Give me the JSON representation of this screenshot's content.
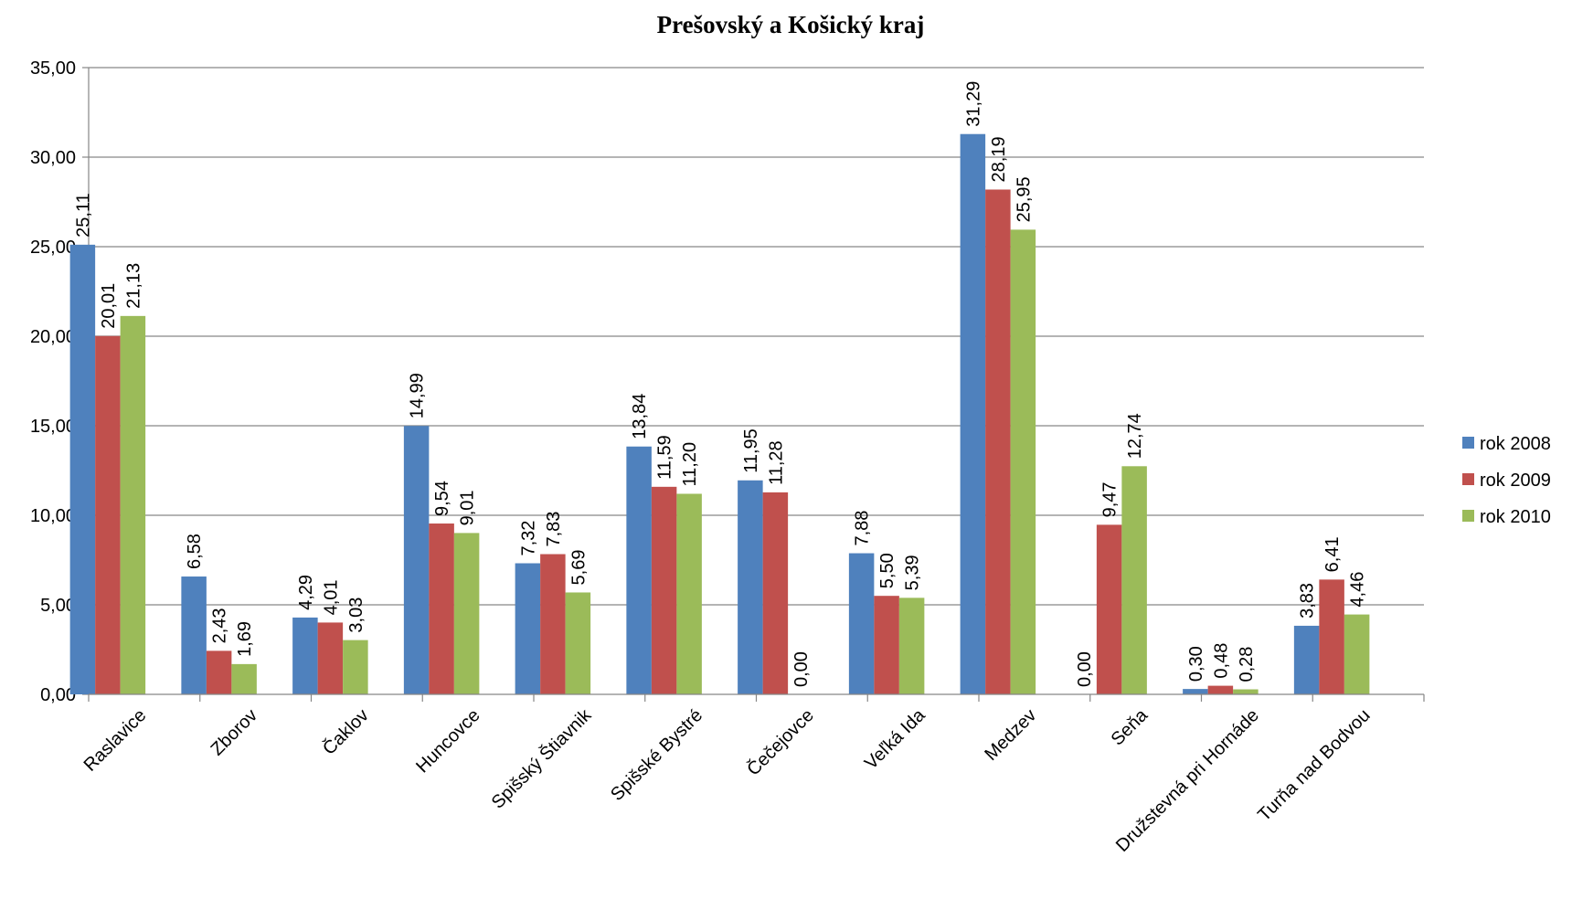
{
  "chart_data": {
    "type": "bar",
    "title": "Prešovský a Košický kraj",
    "xlabel": "",
    "ylabel": "",
    "ylim": [
      0,
      35
    ],
    "yticks": [
      "0,00",
      "5,00",
      "10,00",
      "15,00",
      "20,00",
      "25,00",
      "30,00",
      "35,00"
    ],
    "grid": true,
    "legend_position": "right",
    "categories": [
      "Raslavice",
      "Zborov",
      "Čaklov",
      "Huncovce",
      "Spišský Štiavnik",
      "Spišské Bystré",
      "Čečejovce",
      "Veľká Ida",
      "Medzev",
      "Seňa",
      "Družstevná pri Hornáde",
      "Turňa nad Bodvou"
    ],
    "series": [
      {
        "name": "rok 2008",
        "color": "#4F81BD",
        "values": [
          25.11,
          6.58,
          4.29,
          14.99,
          7.32,
          13.84,
          11.95,
          7.88,
          31.29,
          0.0,
          0.3,
          3.83
        ],
        "labels": [
          "25,11",
          "6,58",
          "4,29",
          "14,99",
          "7,32",
          "13,84",
          "11,95",
          "7,88",
          "31,29",
          "0,00",
          "0,30",
          "3,83"
        ]
      },
      {
        "name": "rok 2009",
        "color": "#C0504D",
        "values": [
          20.01,
          2.43,
          4.01,
          9.54,
          7.83,
          11.59,
          11.28,
          5.5,
          28.19,
          9.47,
          0.48,
          6.41
        ],
        "labels": [
          "20,01",
          "2,43",
          "4,01",
          "9,54",
          "7,83",
          "11,59",
          "11,28",
          "5,50",
          "28,19",
          "9,47",
          "0,48",
          "6,41"
        ]
      },
      {
        "name": "rok 2010",
        "color": "#9BBB59",
        "values": [
          21.13,
          1.69,
          3.03,
          9.01,
          5.69,
          11.2,
          0.0,
          5.39,
          25.95,
          12.74,
          0.28,
          4.46
        ],
        "labels": [
          "21,13",
          "1,69",
          "3,03",
          "9,01",
          "5,69",
          "11,20",
          "0,00",
          "5,39",
          "25,95",
          "12,74",
          "0,28",
          "4,46"
        ]
      }
    ]
  }
}
